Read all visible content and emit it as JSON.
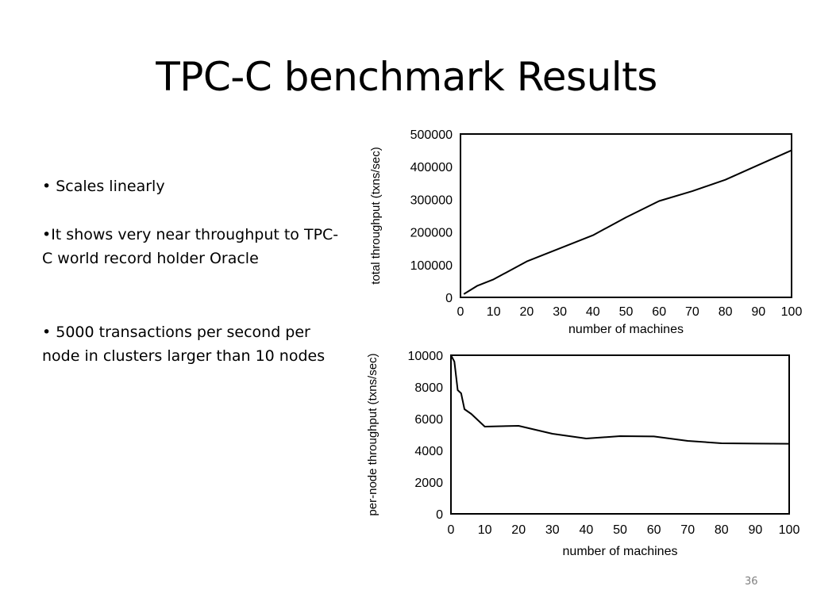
{
  "slide": {
    "title": "TPC-C benchmark Results",
    "page_number": "36"
  },
  "bullets": [
    "•  Scales linearly",
    "•It shows very near throughput  to TPC-C world record holder Oracle",
    "• 5000 transactions per second per node in clusters larger than 10 nodes"
  ],
  "colors": {
    "line": "#000000",
    "axis": "#000000",
    "page_number": "#7f7f7f"
  },
  "chart_data": [
    {
      "type": "line",
      "xlabel": "number of machines",
      "ylabel": "total throughput (txns/sec)",
      "xlim": [
        0,
        100
      ],
      "ylim": [
        0,
        500000
      ],
      "xticks": [
        0,
        10,
        20,
        30,
        40,
        50,
        60,
        70,
        80,
        90,
        100
      ],
      "yticks": [
        0,
        100000,
        200000,
        300000,
        400000,
        500000
      ],
      "grid": false,
      "x": [
        1,
        5,
        10,
        20,
        30,
        40,
        50,
        60,
        70,
        80,
        90,
        100
      ],
      "y": [
        10000,
        35000,
        55000,
        110000,
        150000,
        190000,
        245000,
        295000,
        325000,
        360000,
        405000,
        450000
      ]
    },
    {
      "type": "line",
      "xlabel": "number of machines",
      "ylabel": "per-node throughput (txns/sec)",
      "xlim": [
        0,
        100
      ],
      "ylim": [
        0,
        10000
      ],
      "xticks": [
        0,
        10,
        20,
        30,
        40,
        50,
        60,
        70,
        80,
        90,
        100
      ],
      "yticks": [
        0,
        2000,
        4000,
        6000,
        8000,
        10000
      ],
      "grid": false,
      "x": [
        0,
        1,
        2,
        3,
        4,
        6,
        10,
        20,
        30,
        40,
        50,
        60,
        70,
        80,
        90,
        100
      ],
      "y": [
        10000,
        9600,
        7800,
        7600,
        6600,
        6300,
        5500,
        5550,
        5050,
        4750,
        4900,
        4880,
        4600,
        4450,
        4430,
        4420
      ]
    }
  ]
}
